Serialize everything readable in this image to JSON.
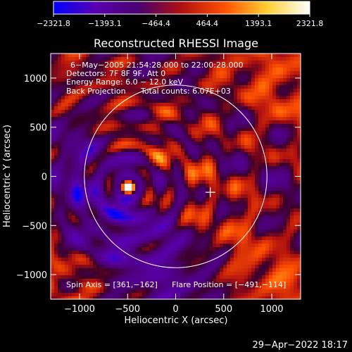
{
  "chart_data": {
    "type": "heatmap",
    "title": "Reconstructed RHESSI Image",
    "xlabel": "Heliocentric X (arcsec)",
    "ylabel": "Heliocentric Y (arcsec)",
    "xlim": [
      -1300,
      1300
    ],
    "ylim": [
      -1250,
      1250
    ],
    "x_ticks": [
      {
        "value": -1000,
        "label": "−1000"
      },
      {
        "value": -500,
        "label": "−500"
      },
      {
        "value": 0,
        "label": "0"
      },
      {
        "value": 500,
        "label": "500"
      },
      {
        "value": 1000,
        "label": "1000"
      }
    ],
    "y_ticks": [
      {
        "value": 1000,
        "label": "1000"
      },
      {
        "value": 500,
        "label": "500"
      },
      {
        "value": 0,
        "label": "0"
      },
      {
        "value": -500,
        "label": "−500"
      },
      {
        "value": -1000,
        "label": "−1000"
      }
    ],
    "colorbar": {
      "min": -2321.8,
      "max": 2321.8,
      "tick_values": [
        -2321.8,
        -1393.1,
        -464.4,
        464.4,
        1393.1,
        2321.8
      ],
      "tick_labels": [
        "−2321.8",
        "−1393.1",
        "−464.4",
        "464.4",
        "1393.1",
        "2321.8"
      ],
      "colors": [
        "#0000ff",
        "#5a00b0",
        "#4a0070",
        "#b01010",
        "#ff5000",
        "#ffd030",
        "#ffffff"
      ]
    },
    "annotations": {
      "time_range": "6−May−2005 21:54:28.000 to 22:00:28.000",
      "detectors": "Detectors: 7F 8F 9F, Att 0",
      "energy_range": "Energy Range: 6.0 − 12.0 keV",
      "method": "Back Projection",
      "total_counts": "Total counts: 6.07E+03",
      "spin_axis": "Spin Axis = [361,−162]",
      "flare_position": "Flare Position = [−491,−114]"
    },
    "solar_limb": {
      "center": [
        0,
        0
      ],
      "radius": 950
    },
    "spin_axis_marker": [
      361,
      -162
    ],
    "bright_source": {
      "center": [
        -491,
        -114
      ],
      "peak": 2321.8
    },
    "ring_pattern": {
      "center": [
        -491,
        -114
      ],
      "ring_radii": [
        200,
        420,
        640
      ],
      "seed": 7
    },
    "background": "#000000",
    "foreground": "#ffffff"
  },
  "footer": {
    "timestamp": "29−Apr−2022 18:17"
  }
}
